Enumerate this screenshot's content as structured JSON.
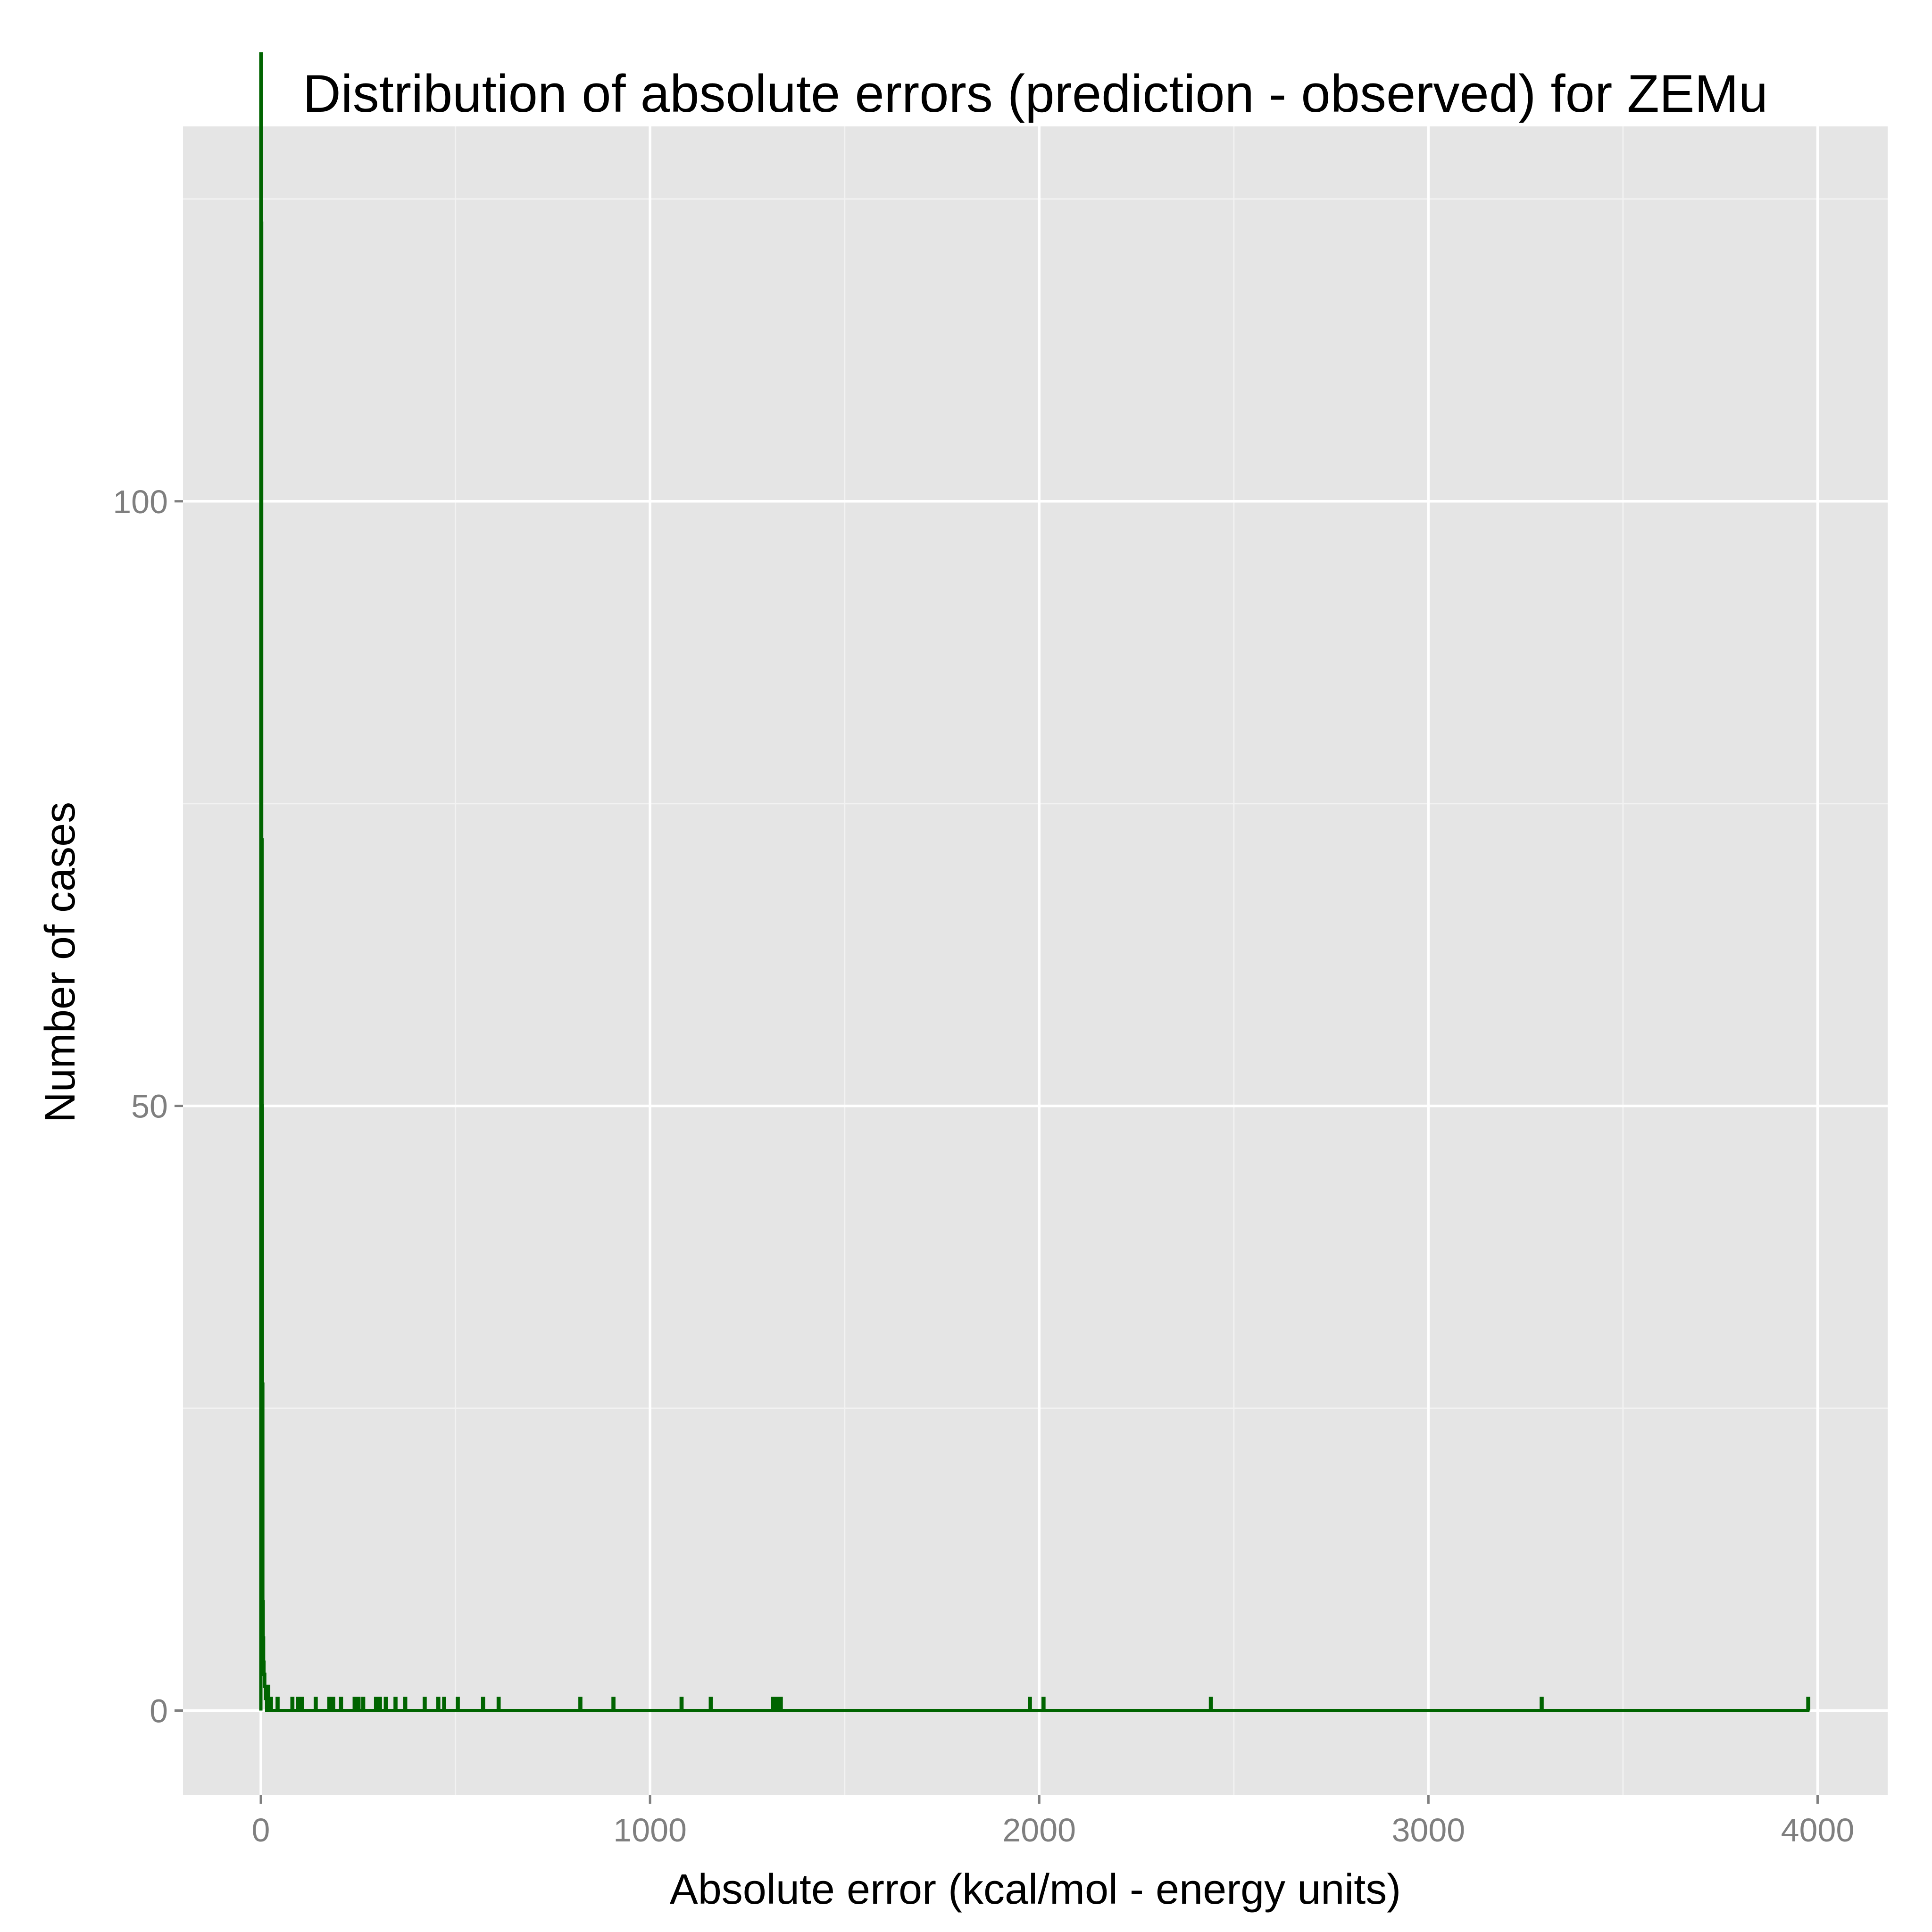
{
  "chart_data": {
    "type": "line",
    "title": "Distribution of absolute errors (prediction - observed) for ZEMu",
    "xlabel": "Absolute error (kcal/mol - energy units)",
    "ylabel": "Number of cases",
    "xlim": [
      -200,
      4180
    ],
    "ylim": [
      -7,
      131
    ],
    "x_ticks": [
      0,
      1000,
      2000,
      3000,
      4000
    ],
    "x_tick_labels": [
      "0",
      "1000",
      "2000",
      "3000",
      "4000"
    ],
    "y_ticks": [
      0,
      50,
      100
    ],
    "y_tick_labels": [
      "0",
      "50",
      "100"
    ],
    "x_minor_ticks": [
      500,
      1500,
      2500,
      3500
    ],
    "y_minor_ticks": [
      25,
      75,
      125
    ],
    "grid": true,
    "panel_background": "#e5e5e5",
    "series_color": "#006400",
    "series": [
      {
        "points": [
          [
            0,
            0
          ],
          [
            0,
            137
          ],
          [
            1,
            137
          ],
          [
            1,
            123
          ],
          [
            2,
            123
          ],
          [
            2,
            72
          ],
          [
            3,
            72
          ],
          [
            3,
            50
          ],
          [
            4,
            50
          ],
          [
            4,
            27
          ],
          [
            5,
            27
          ],
          [
            5,
            9
          ],
          [
            6,
            9
          ],
          [
            6,
            6
          ],
          [
            7,
            6
          ],
          [
            7,
            4
          ],
          [
            8,
            4
          ],
          [
            8,
            3
          ],
          [
            10,
            3
          ],
          [
            10,
            2
          ],
          [
            12,
            2
          ],
          [
            12,
            1
          ],
          [
            15,
            1
          ],
          [
            15,
            0
          ],
          [
            18,
            0
          ],
          [
            18,
            2
          ],
          [
            20,
            2
          ],
          [
            20,
            0
          ],
          [
            25,
            0
          ],
          [
            25,
            1
          ],
          [
            27,
            1
          ],
          [
            27,
            0
          ],
          [
            42,
            0
          ],
          [
            42,
            1
          ],
          [
            44,
            1
          ],
          [
            44,
            0
          ],
          [
            80,
            0
          ],
          [
            80,
            1
          ],
          [
            82,
            1
          ],
          [
            82,
            0
          ],
          [
            95,
            0
          ],
          [
            95,
            1
          ],
          [
            97,
            1
          ],
          [
            97,
            0
          ],
          [
            105,
            0
          ],
          [
            105,
            1
          ],
          [
            107,
            1
          ],
          [
            107,
            0
          ],
          [
            140,
            0
          ],
          [
            140,
            1
          ],
          [
            142,
            1
          ],
          [
            142,
            0
          ],
          [
            175,
            0
          ],
          [
            175,
            1
          ],
          [
            177,
            1
          ],
          [
            177,
            0
          ],
          [
            185,
            0
          ],
          [
            185,
            1
          ],
          [
            187,
            1
          ],
          [
            187,
            0
          ],
          [
            205,
            0
          ],
          [
            205,
            1
          ],
          [
            207,
            1
          ],
          [
            207,
            0
          ],
          [
            240,
            0
          ],
          [
            240,
            1
          ],
          [
            242,
            1
          ],
          [
            242,
            0
          ],
          [
            250,
            0
          ],
          [
            250,
            1
          ],
          [
            252,
            1
          ],
          [
            252,
            0
          ],
          [
            262,
            0
          ],
          [
            262,
            1
          ],
          [
            264,
            1
          ],
          [
            264,
            0
          ],
          [
            295,
            0
          ],
          [
            295,
            1
          ],
          [
            297,
            1
          ],
          [
            297,
            0
          ],
          [
            305,
            0
          ],
          [
            305,
            1
          ],
          [
            307,
            1
          ],
          [
            307,
            0
          ],
          [
            320,
            0
          ],
          [
            320,
            1
          ],
          [
            322,
            1
          ],
          [
            322,
            0
          ],
          [
            345,
            0
          ],
          [
            345,
            1
          ],
          [
            347,
            1
          ],
          [
            347,
            0
          ],
          [
            370,
            0
          ],
          [
            370,
            1
          ],
          [
            372,
            1
          ],
          [
            372,
            0
          ],
          [
            420,
            0
          ],
          [
            420,
            1
          ],
          [
            422,
            1
          ],
          [
            422,
            0
          ],
          [
            455,
            0
          ],
          [
            455,
            1
          ],
          [
            457,
            1
          ],
          [
            457,
            0
          ],
          [
            470,
            0
          ],
          [
            470,
            1
          ],
          [
            472,
            1
          ],
          [
            472,
            0
          ],
          [
            505,
            0
          ],
          [
            505,
            1
          ],
          [
            507,
            1
          ],
          [
            507,
            0
          ],
          [
            570,
            0
          ],
          [
            570,
            1
          ],
          [
            572,
            1
          ],
          [
            572,
            0
          ],
          [
            610,
            0
          ],
          [
            610,
            1
          ],
          [
            612,
            1
          ],
          [
            612,
            0
          ],
          [
            820,
            0
          ],
          [
            820,
            1
          ],
          [
            822,
            1
          ],
          [
            822,
            0
          ],
          [
            905,
            0
          ],
          [
            905,
            1
          ],
          [
            907,
            1
          ],
          [
            907,
            0
          ],
          [
            1080,
            0
          ],
          [
            1080,
            1
          ],
          [
            1082,
            1
          ],
          [
            1082,
            0
          ],
          [
            1155,
            0
          ],
          [
            1155,
            1
          ],
          [
            1157,
            1
          ],
          [
            1157,
            0
          ],
          [
            1315,
            0
          ],
          [
            1315,
            1
          ],
          [
            1317,
            1
          ],
          [
            1317,
            0
          ],
          [
            1325,
            0
          ],
          [
            1325,
            1
          ],
          [
            1327,
            1
          ],
          [
            1327,
            0
          ],
          [
            1335,
            0
          ],
          [
            1335,
            1
          ],
          [
            1337,
            1
          ],
          [
            1337,
            0
          ],
          [
            1975,
            0
          ],
          [
            1975,
            1
          ],
          [
            1977,
            1
          ],
          [
            1977,
            0
          ],
          [
            2010,
            0
          ],
          [
            2010,
            1
          ],
          [
            2012,
            1
          ],
          [
            2012,
            0
          ],
          [
            2440,
            0
          ],
          [
            2440,
            1
          ],
          [
            2442,
            1
          ],
          [
            2442,
            0
          ],
          [
            3290,
            0
          ],
          [
            3290,
            1
          ],
          [
            3292,
            1
          ],
          [
            3292,
            0
          ],
          [
            3975,
            0
          ],
          [
            3975,
            1
          ],
          [
            3977,
            1
          ],
          [
            3977,
            0
          ]
        ]
      }
    ]
  }
}
